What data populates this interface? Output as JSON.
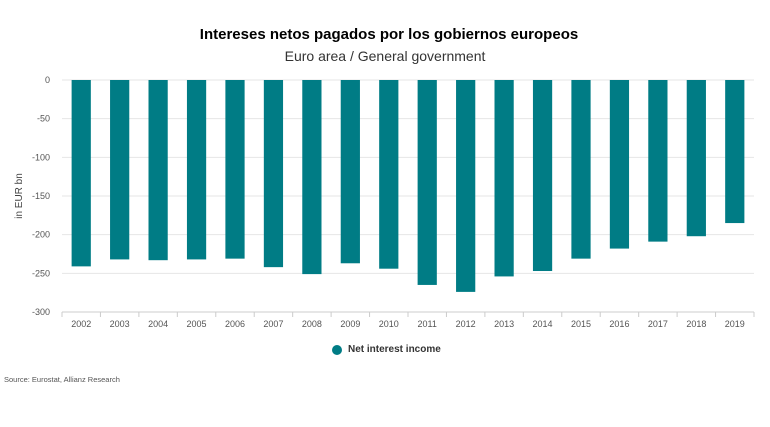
{
  "title": "Intereses netos pagados por los gobiernos europeos",
  "subtitle": "Euro area / General government",
  "source": "Source: Eurostat, Allianz Research",
  "colors": {
    "bar": "#007c85",
    "grid": "#e6e6e6",
    "axis": "#cccccc"
  },
  "chart_data": {
    "type": "bar",
    "ylabel": "in EUR bn",
    "ylim": [
      -300,
      0
    ],
    "yticks": [
      0,
      -50,
      -100,
      -150,
      -200,
      -250,
      -300
    ],
    "grid": true,
    "legend_position": "bottom-center",
    "categories": [
      "2002",
      "2003",
      "2004",
      "2005",
      "2006",
      "2007",
      "2008",
      "2009",
      "2010",
      "2011",
      "2012",
      "2013",
      "2014",
      "2015",
      "2016",
      "2017",
      "2018",
      "2019"
    ],
    "series": [
      {
        "name": "Net interest income",
        "values": [
          -241,
          -232,
          -233,
          -232,
          -231,
          -242,
          -251,
          -237,
          -244,
          -265,
          -274,
          -254,
          -247,
          -231,
          -218,
          -209,
          -202,
          -185
        ]
      }
    ]
  }
}
